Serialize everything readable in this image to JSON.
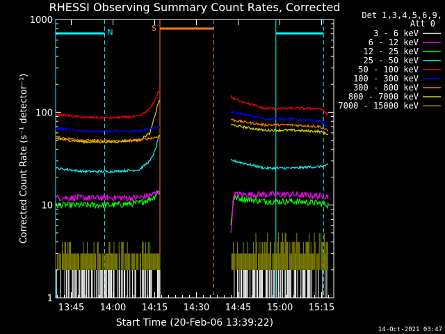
{
  "chart_data": {
    "type": "line",
    "title": "RHESSI Observing Summary Count Rates, Corrected",
    "xlabel": "Start Time (20-Feb-06 13:39:22)",
    "ylabel": "Corrected Count Rate (s⁻¹ detector⁻¹)",
    "y_scale": "log",
    "ylim": [
      1,
      1000
    ],
    "xlim_minutes": [
      0,
      100
    ],
    "y_ticks": [
      {
        "value": 1,
        "label": "1"
      },
      {
        "value": 10,
        "label": "10"
      },
      {
        "value": 100,
        "label": "100"
      },
      {
        "value": 1000,
        "label": "1000"
      }
    ],
    "x_ticks": [
      {
        "minute": 5.63,
        "label": "13:45"
      },
      {
        "minute": 20.63,
        "label": "14:00"
      },
      {
        "minute": 35.63,
        "label": "14:15"
      },
      {
        "minute": 50.63,
        "label": "14:30"
      },
      {
        "minute": 65.63,
        "label": "14:45"
      },
      {
        "minute": 80.63,
        "label": "15:00"
      },
      {
        "minute": 95.63,
        "label": "15:15"
      }
    ],
    "legend_header": [
      "Det 1,3,4,5,6,9,",
      "Att 0"
    ],
    "legend_position": "right",
    "data_gap_minutes": [
      37.5,
      63.0
    ],
    "series": [
      {
        "name": "3 - 6 keV",
        "color": "#ffffff",
        "x": [
          0,
          20,
          36,
          37,
          63,
          64,
          80,
          98
        ],
        "y": [
          1.5,
          1.5,
          1.5,
          1.5,
          1.5,
          1.5,
          1.5,
          1.5
        ]
      },
      {
        "name": "6 - 12 keV",
        "color": "#ff00ff",
        "x": [
          0,
          10,
          20,
          30,
          35,
          37,
          63,
          64,
          75,
          85,
          95,
          98
        ],
        "y": [
          12,
          12,
          12,
          12,
          13,
          14,
          5,
          13,
          13,
          13,
          12.5,
          12.5
        ]
      },
      {
        "name": "12 - 25 keV",
        "color": "#00ff00",
        "x": [
          0,
          10,
          20,
          30,
          35,
          37,
          63,
          64,
          75,
          85,
          95,
          98
        ],
        "y": [
          10,
          10,
          10,
          10.5,
          12,
          14,
          6,
          12,
          11,
          11,
          10.5,
          10
        ]
      },
      {
        "name": "25 - 50 keV",
        "color": "#00ffff",
        "x": [
          0,
          10,
          20,
          30,
          34,
          36,
          37,
          63,
          64,
          75,
          85,
          95,
          98
        ],
        "y": [
          25,
          23,
          23,
          24,
          30,
          40,
          55,
          30,
          30,
          25,
          25,
          26,
          27
        ]
      },
      {
        "name": "50 - 100 keV",
        "color": "#ff0000",
        "x": [
          0,
          10,
          20,
          30,
          34,
          36,
          37,
          63,
          64,
          75,
          85,
          95,
          98
        ],
        "y": [
          95,
          88,
          87,
          90,
          110,
          140,
          170,
          150,
          140,
          110,
          110,
          110,
          95
        ]
      },
      {
        "name": "100 - 300 keV",
        "color": "#0000ff",
        "x": [
          0,
          10,
          20,
          30,
          35,
          37,
          63,
          64,
          75,
          85,
          95,
          98
        ],
        "y": [
          67,
          63,
          62,
          63,
          67,
          68,
          100,
          100,
          85,
          85,
          80,
          70
        ]
      },
      {
        "name": "300 - 800 keV",
        "color": "#ff8000",
        "x": [
          0,
          10,
          20,
          30,
          35,
          37,
          63,
          64,
          75,
          85,
          95,
          98
        ],
        "y": [
          54,
          50,
          49,
          50,
          53,
          55,
          85,
          82,
          73,
          73,
          70,
          63
        ]
      },
      {
        "name": "800 - 7000 keV",
        "color": "#dddd00",
        "x": [
          0,
          10,
          20,
          30,
          34,
          36,
          37,
          63,
          64,
          75,
          85,
          95,
          98
        ],
        "y": [
          52,
          48,
          48,
          50,
          60,
          100,
          130,
          75,
          72,
          64,
          64,
          62,
          58
        ]
      },
      {
        "name": "7000 - 15000 keV",
        "color": "#888800",
        "x": [
          0,
          10,
          20,
          30,
          36,
          37,
          63,
          64,
          75,
          85,
          95,
          98
        ],
        "y": [
          3,
          3,
          3,
          3.5,
          3,
          3,
          3,
          3,
          4,
          4,
          5,
          4
        ]
      }
    ],
    "annotations": [
      {
        "label": "N",
        "color": "#00ffff"
      },
      {
        "label": "S",
        "color": "#ff8000"
      }
    ],
    "footer": "14-Oct-2021 03:47"
  }
}
